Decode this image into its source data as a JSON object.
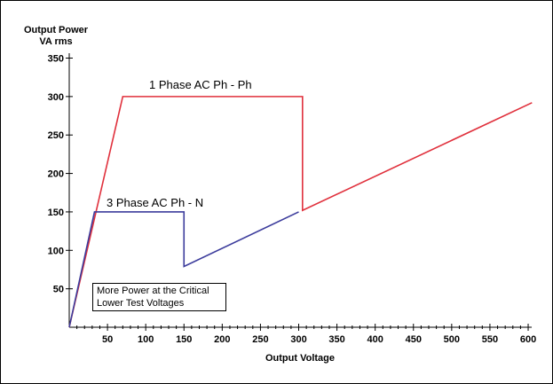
{
  "chart_data": {
    "type": "line",
    "ylabel": [
      "Output Power",
      "VA rms"
    ],
    "xlabel": "Output Voltage",
    "xlim": [
      0,
      600
    ],
    "ylim": [
      0,
      350
    ],
    "xticks": [
      50,
      100,
      150,
      200,
      250,
      300,
      350,
      400,
      450,
      500,
      550,
      600
    ],
    "yticks": [
      50,
      100,
      150,
      200,
      250,
      300,
      350
    ],
    "grid": false,
    "series": [
      {
        "name": "1 Phase AC Ph - Ph",
        "color": "#e0303c",
        "points": [
          [
            0,
            0
          ],
          [
            70,
            300
          ],
          [
            305,
            300
          ],
          [
            305,
            152
          ],
          [
            605,
            292
          ]
        ]
      },
      {
        "name": "3 Phase AC Ph - N",
        "color": "#3c3c9c",
        "points": [
          [
            0,
            0
          ],
          [
            33,
            150
          ],
          [
            150,
            150
          ],
          [
            150,
            79
          ],
          [
            300,
            150
          ]
        ]
      }
    ],
    "annotation": [
      "More Power at the Critical",
      "Lower Test Voltages"
    ]
  }
}
